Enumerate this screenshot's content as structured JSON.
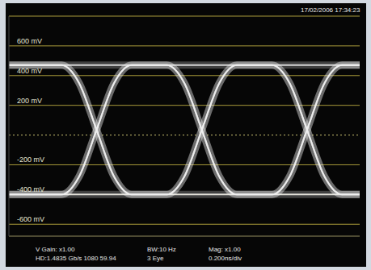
{
  "chart_data": {
    "type": "line",
    "annotations": [
      "17/02/2006 17:34:23",
      "V Gain: x1.00",
      "BW:10 Hz",
      "Mag: x1.00",
      "HD:1.4835 Gb/s 1080 59.94",
      "3 Eye",
      "0.200ns/div"
    ],
    "x": [
      0,
      0.1,
      0.2,
      0.3,
      0.4,
      0.5,
      0.6,
      0.7,
      0.8,
      0.9,
      1.0,
      1.1,
      1.2,
      1.3,
      1.4,
      1.5,
      1.6,
      1.7,
      1.8,
      1.9,
      2.0
    ],
    "xlim": [
      0,
      2
    ],
    "ylim": [
      -680,
      800
    ],
    "yticks": [
      {
        "value": 600,
        "label": "600 mV"
      },
      {
        "value": 400,
        "label": "400 mV"
      },
      {
        "value": 200,
        "label": "200 mV"
      },
      {
        "value": -200,
        "label": "-200 mV"
      },
      {
        "value": -400,
        "label": "-400 mV"
      },
      {
        "value": -600,
        "label": "-600 mV"
      }
    ],
    "grid": true,
    "tick_labels": "y",
    "series": [
      {
        "color": "#f0f0f0",
        "values": [
          470,
          470,
          470,
          470,
          350,
          35,
          -280,
          -400,
          -400,
          -400,
          -280,
          35,
          350,
          470,
          470,
          470,
          350,
          35,
          -280,
          -400,
          -400
        ]
      },
      {
        "color": "#f0f0f0",
        "values": [
          -400,
          -400,
          -400,
          -400,
          -280,
          35,
          350,
          470,
          470,
          470,
          350,
          35,
          -280,
          -400,
          -400,
          -400,
          -280,
          35,
          350,
          470,
          470
        ]
      },
      {
        "color": "#f0f0f0",
        "values": [
          470,
          470,
          470,
          470,
          470,
          470,
          470,
          470,
          470,
          470,
          350,
          35,
          -280,
          -400,
          -400,
          -400,
          -400,
          -400,
          -400,
          -400,
          -400
        ]
      },
      {
        "color": "#f0f0f0",
        "values": [
          -400,
          -400,
          -400,
          -400,
          -400,
          -400,
          -400,
          -400,
          -400,
          -400,
          -280,
          35,
          350,
          470,
          470,
          470,
          470,
          470,
          470,
          470,
          470
        ]
      },
      {
        "color": "#f0f0f0",
        "values": [
          470,
          470,
          470,
          470,
          350,
          35,
          -280,
          -400,
          -400,
          -400,
          -400,
          -400,
          -400,
          -400,
          -400,
          -400,
          -280,
          35,
          350,
          470,
          470
        ]
      },
      {
        "color": "#f0f0f0",
        "values": [
          -400,
          -400,
          -400,
          -400,
          -280,
          35,
          350,
          470,
          470,
          470,
          470,
          470,
          470,
          470,
          470,
          470,
          350,
          35,
          -280,
          -400,
          -400
        ]
      }
    ]
  }
}
